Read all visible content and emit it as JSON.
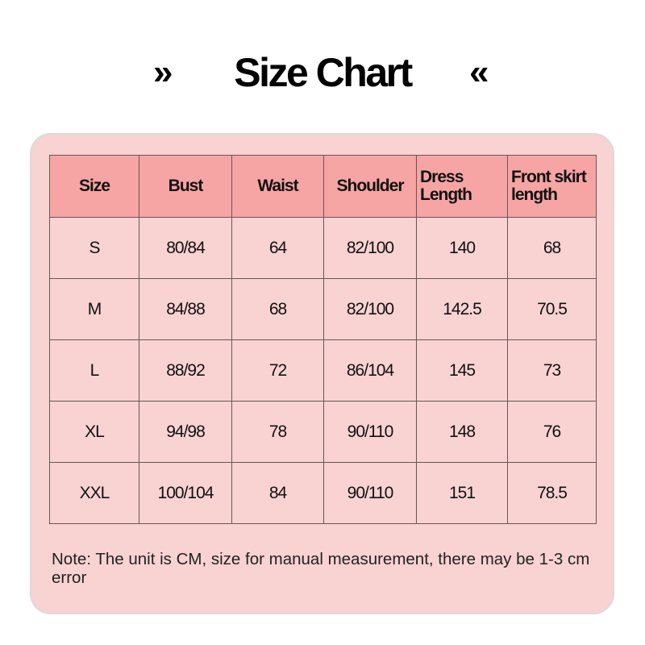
{
  "header": {
    "title": "Size Chart",
    "left_icon": "double-chevron-right-icon",
    "right_icon": "double-chevron-left-icon"
  },
  "colors": {
    "card_bg": "#f9d2d2",
    "header_bg": "#f7a4a4"
  },
  "table": {
    "columns": [
      "Size",
      "Bust",
      "Waist",
      "Shoulder",
      "Dress Length",
      "Front skirt length"
    ],
    "rows": [
      [
        "S",
        "80/84",
        "64",
        "82/100",
        "140",
        "68"
      ],
      [
        "M",
        "84/88",
        "68",
        "82/100",
        "142.5",
        "70.5"
      ],
      [
        "L",
        "88/92",
        "72",
        "86/104",
        "145",
        "73"
      ],
      [
        "XL",
        "94/98",
        "78",
        "90/110",
        "148",
        "76"
      ],
      [
        "XXL",
        "100/104",
        "84",
        "90/110",
        "151",
        "78.5"
      ]
    ]
  },
  "note": "Note: The unit is CM, size for manual measurement, there may be 1-3 cm error"
}
